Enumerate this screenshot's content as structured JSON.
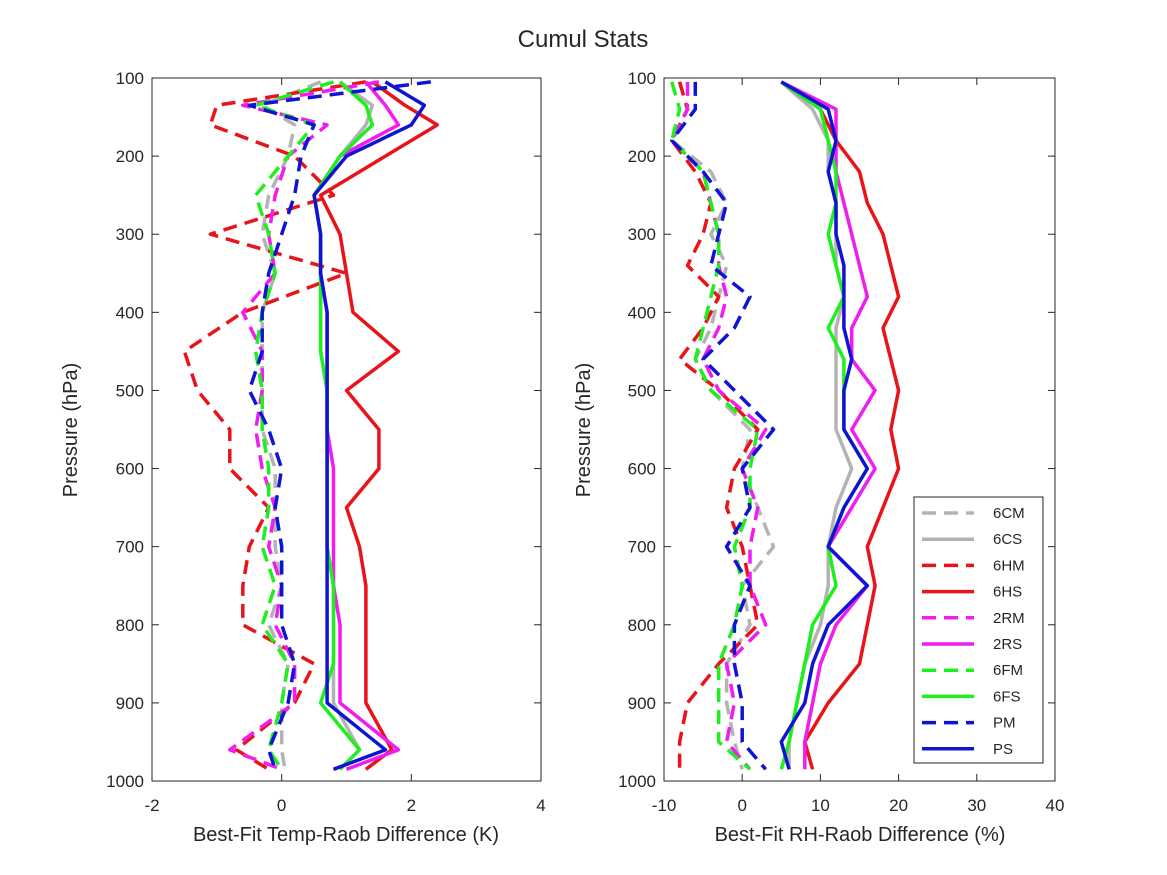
{
  "title": "Cumul Stats",
  "colors": {
    "6C": "#b3b3b3",
    "6H": "#e8141a",
    "2R": "#f01cf0",
    "6F": "#1ef01e",
    "P": "#0f14d2"
  },
  "legend": {
    "placement": "bottom-right of right panel",
    "entries": [
      {
        "label": "6CM",
        "color": "#b3b3b3",
        "style": "dashed"
      },
      {
        "label": "6CS",
        "color": "#b3b3b3",
        "style": "solid"
      },
      {
        "label": "6HM",
        "color": "#e8141a",
        "style": "dashed"
      },
      {
        "label": "6HS",
        "color": "#e8141a",
        "style": "solid"
      },
      {
        "label": "2RM",
        "color": "#f01cf0",
        "style": "dashed"
      },
      {
        "label": "2RS",
        "color": "#f01cf0",
        "style": "solid"
      },
      {
        "label": "6FM",
        "color": "#1ef01e",
        "style": "dashed"
      },
      {
        "label": "6FS",
        "color": "#1ef01e",
        "style": "solid"
      },
      {
        "label": "PM",
        "color": "#0f14d2",
        "style": "dashed"
      },
      {
        "label": "PS",
        "color": "#0f14d2",
        "style": "solid"
      }
    ]
  },
  "chart_data": [
    {
      "type": "line",
      "xlabel": "Best-Fit Temp-Raob Difference (K)",
      "ylabel": "Pressure (hPa)",
      "xlim": [
        -2,
        4
      ],
      "ylim": [
        1000,
        100
      ],
      "y_reversed": true,
      "xticks": [
        "-2",
        "0",
        "2",
        "4"
      ],
      "yticks": [
        "100",
        "200",
        "300",
        "400",
        "500",
        "600",
        "700",
        "800",
        "900",
        "1000"
      ],
      "grid": false,
      "pressure": [
        105,
        135,
        160,
        200,
        250,
        300,
        350,
        400,
        450,
        500,
        550,
        600,
        650,
        700,
        750,
        800,
        850,
        900,
        960,
        985
      ],
      "series": [
        {
          "name": "6CM",
          "x": [
            0.6,
            -0.3,
            0.2,
            0.1,
            -0.2,
            -0.3,
            -0.1,
            -0.3,
            -0.3,
            -0.3,
            -0.3,
            -0.1,
            -0.1,
            -0.1,
            0.0,
            -0.2,
            0.1,
            0.0,
            0.0,
            0.05
          ]
        },
        {
          "name": "6CS",
          "x": [
            0.9,
            1.4,
            1.3,
            0.9,
            0.5,
            0.6,
            0.6,
            0.6,
            0.6,
            0.7,
            0.7,
            0.7,
            0.7,
            0.7,
            0.8,
            0.8,
            0.8,
            0.8,
            1.2,
            0.9
          ]
        },
        {
          "name": "6HM",
          "x": [
            1.3,
            -1.0,
            -1.1,
            0.2,
            0.8,
            -1.1,
            1.0,
            -0.6,
            -1.5,
            -1.3,
            -0.8,
            -0.8,
            -0.2,
            -0.5,
            -0.6,
            -0.6,
            0.5,
            0.2,
            -0.7,
            -0.2
          ]
        },
        {
          "name": "6HS",
          "x": [
            1.4,
            1.9,
            2.4,
            1.6,
            0.6,
            0.9,
            1.0,
            1.1,
            1.8,
            1.0,
            1.5,
            1.5,
            1.0,
            1.2,
            1.3,
            1.3,
            1.3,
            1.3,
            1.7,
            1.3
          ]
        },
        {
          "name": "2RM",
          "x": [
            1.5,
            -0.6,
            0.7,
            0.1,
            -0.1,
            -0.2,
            -0.1,
            -0.6,
            -0.3,
            -0.3,
            -0.4,
            -0.3,
            -0.1,
            -0.2,
            0.0,
            -0.1,
            0.2,
            0.2,
            -0.8,
            0.0
          ]
        },
        {
          "name": "2RS",
          "x": [
            1.3,
            1.6,
            1.8,
            0.9,
            0.5,
            0.6,
            0.6,
            0.7,
            0.7,
            0.7,
            0.7,
            0.8,
            0.8,
            0.8,
            0.8,
            0.9,
            0.9,
            0.9,
            1.8,
            1.0
          ]
        },
        {
          "name": "6FM",
          "x": [
            0.8,
            -0.4,
            0.5,
            0.1,
            -0.4,
            -0.2,
            -0.1,
            -0.3,
            -0.4,
            -0.3,
            -0.3,
            -0.2,
            -0.2,
            -0.3,
            -0.1,
            -0.3,
            0.1,
            0.0,
            -0.2,
            0.0
          ]
        },
        {
          "name": "6FS",
          "x": [
            0.9,
            1.3,
            1.4,
            0.9,
            0.5,
            0.6,
            0.6,
            0.6,
            0.6,
            0.7,
            0.7,
            0.7,
            0.7,
            0.7,
            0.8,
            0.8,
            0.8,
            0.6,
            1.2,
            0.9
          ]
        },
        {
          "name": "PM",
          "x": [
            2.3,
            -0.5,
            0.5,
            0.3,
            0.2,
            0.0,
            -0.2,
            -0.3,
            -0.3,
            -0.5,
            -0.2,
            0.0,
            -0.1,
            0.0,
            0.0,
            0.0,
            0.2,
            0.1,
            -0.2,
            -0.1
          ]
        },
        {
          "name": "PS",
          "x": [
            1.6,
            2.2,
            2.0,
            1.0,
            0.5,
            0.6,
            0.6,
            0.7,
            0.7,
            0.7,
            0.7,
            0.7,
            0.7,
            0.7,
            0.7,
            0.7,
            0.7,
            0.7,
            1.6,
            0.8
          ]
        }
      ]
    },
    {
      "type": "line",
      "xlabel": "Best-Fit RH-Raob Difference (%)",
      "ylabel": "Pressure (hPa)",
      "xlim": [
        -10,
        40
      ],
      "ylim": [
        1000,
        100
      ],
      "y_reversed": true,
      "xticks": [
        "-10",
        "0",
        "10",
        "20",
        "30",
        "40"
      ],
      "yticks": [
        "100",
        "200",
        "300",
        "400",
        "500",
        "600",
        "700",
        "800",
        "900",
        "1000"
      ],
      "grid": false,
      "pressure": [
        105,
        140,
        180,
        220,
        260,
        300,
        340,
        380,
        420,
        460,
        500,
        550,
        600,
        650,
        700,
        750,
        800,
        850,
        900,
        950,
        985
      ],
      "series": [
        {
          "name": "6CM",
          "x": [
            -8,
            -7,
            -9,
            -4,
            -2,
            -4,
            -2,
            -3,
            -4,
            -6,
            -4,
            1,
            0,
            2,
            4,
            0,
            1,
            -2,
            -2,
            -1,
            0
          ]
        },
        {
          "name": "6CS",
          "x": [
            5,
            9,
            11,
            11,
            12,
            12,
            12,
            13,
            12,
            12,
            12,
            12,
            14,
            12,
            11,
            11,
            10,
            8,
            7,
            6,
            6
          ]
        },
        {
          "name": "6HM",
          "x": [
            -8,
            -7,
            -9,
            -6,
            -4,
            -5,
            -7,
            -3,
            -5,
            -8,
            -3,
            2,
            -1,
            -2,
            0,
            1,
            2,
            -3,
            -7,
            -8,
            -8
          ]
        },
        {
          "name": "6HS",
          "x": [
            5,
            10,
            12,
            15,
            16,
            18,
            19,
            20,
            18,
            19,
            20,
            19,
            20,
            18,
            16,
            17,
            16,
            15,
            11,
            8,
            9
          ]
        },
        {
          "name": "2RM",
          "x": [
            -7,
            -7,
            -9,
            -5,
            -4,
            -3,
            -3,
            -2,
            -3,
            -5,
            -3,
            3,
            0,
            2,
            1,
            1,
            3,
            -2,
            -1,
            -2,
            1
          ]
        },
        {
          "name": "2RS",
          "x": [
            5,
            12,
            12,
            12,
            13,
            14,
            15,
            16,
            14,
            14,
            17,
            14,
            17,
            14,
            11,
            16,
            12,
            10,
            9,
            8,
            8
          ]
        },
        {
          "name": "6FM",
          "x": [
            -9,
            -8,
            -9,
            -5,
            -4,
            -3,
            -3,
            -4,
            -5,
            -6,
            -4,
            2,
            1,
            1,
            -1,
            0,
            -1,
            -3,
            -3,
            -3,
            1
          ]
        },
        {
          "name": "6FS",
          "x": [
            5,
            10,
            11,
            12,
            12,
            11,
            12,
            13,
            11,
            13,
            13,
            13,
            16,
            13,
            11,
            12,
            9,
            8,
            7,
            6,
            5
          ]
        },
        {
          "name": "PM",
          "x": [
            -6,
            -6,
            -9,
            -5,
            -2,
            -3,
            -4,
            1,
            -1,
            -5,
            -1,
            4,
            0,
            1,
            -2,
            1,
            -1,
            -1,
            0,
            0,
            3
          ]
        },
        {
          "name": "PS",
          "x": [
            5,
            11,
            12,
            11,
            12,
            12,
            13,
            13,
            13,
            14,
            13,
            13,
            16,
            13,
            11,
            16,
            11,
            9,
            8,
            5,
            6
          ]
        }
      ]
    }
  ]
}
